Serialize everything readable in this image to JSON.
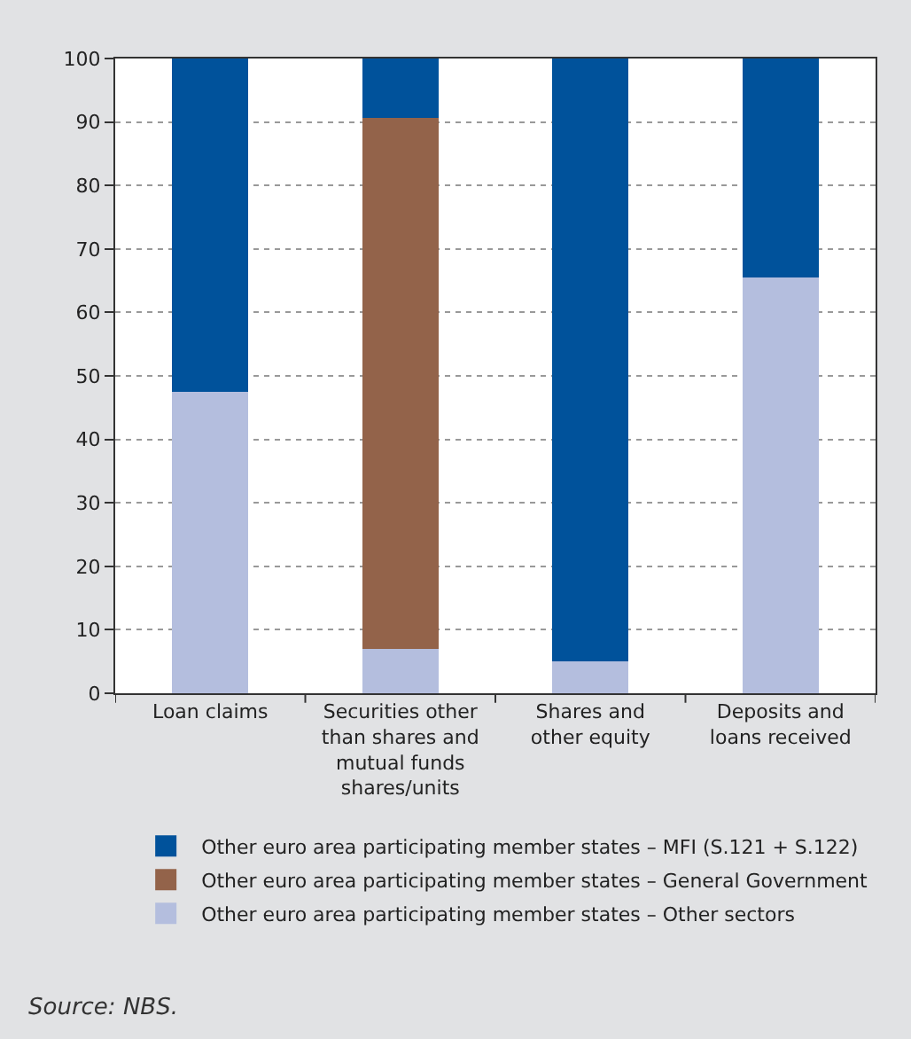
{
  "chart_data": {
    "type": "bar",
    "stacked": true,
    "categories": [
      "Loan claims",
      "Securities other\nthan shares and\nmutual funds\nshares/units",
      "Shares and\nother equity",
      "Deposits and\nloans received"
    ],
    "series": [
      {
        "name": "Other euro area participating member states – Other sectors",
        "color": "#b4bede",
        "values": [
          47.5,
          7,
          5,
          65.5
        ]
      },
      {
        "name": "Other euro area participating member states – General Government",
        "color": "#93634a",
        "values": [
          0,
          83.7,
          0,
          0
        ]
      },
      {
        "name": "Other euro area participating member states – MFI (S.121 + S.122)",
        "color": "#00529b",
        "values": [
          52.5,
          9.3,
          95,
          34.5
        ]
      }
    ],
    "ylim": [
      0,
      100
    ],
    "yticks": [
      0,
      10,
      20,
      30,
      40,
      50,
      60,
      70,
      80,
      90,
      100
    ],
    "grid": "y",
    "legend": "bottom",
    "annotations": [
      "Source: NBS."
    ]
  }
}
